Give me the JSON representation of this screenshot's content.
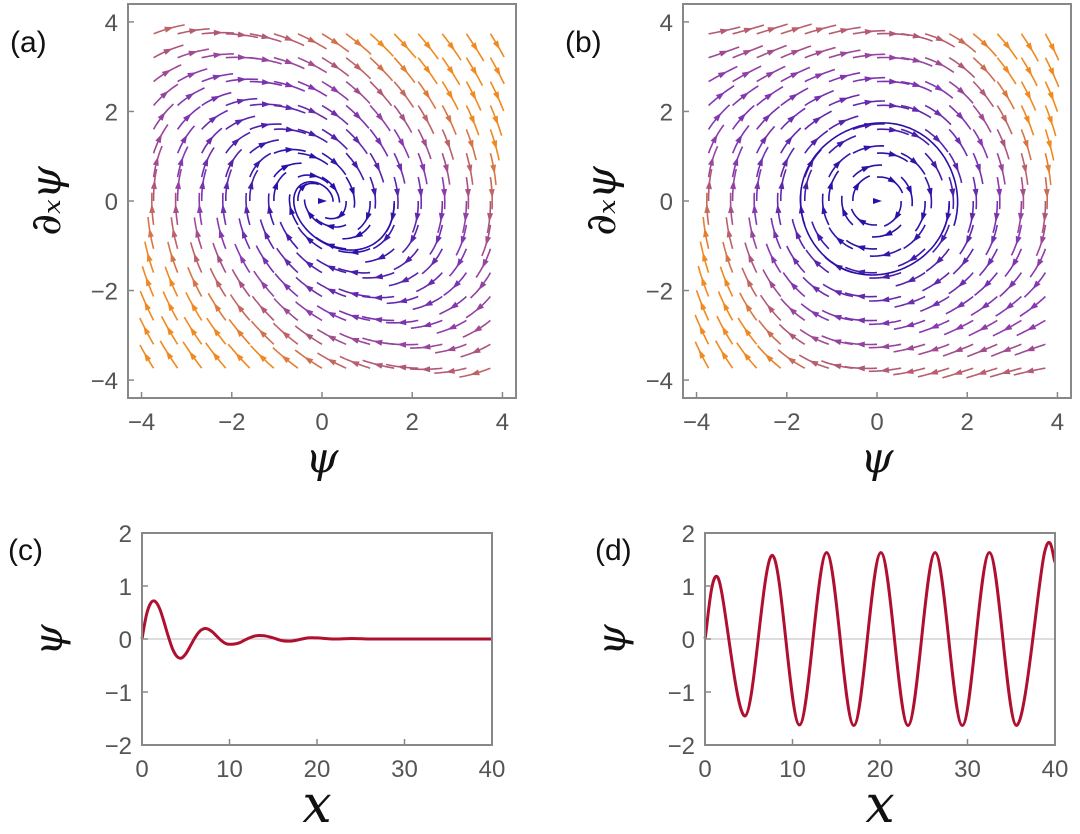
{
  "chart_data": [
    {
      "panel": "(a)",
      "type": "streamplot",
      "title": "",
      "xlabel": "ψ",
      "ylabel": "∂ₓψ",
      "xlim": [
        -4.3,
        4.3
      ],
      "ylim": [
        -4.4,
        4.4
      ],
      "xticks": [
        -4,
        -2,
        0,
        2,
        4
      ],
      "yticks": [
        -4,
        -2,
        0,
        2,
        4
      ],
      "xtick_labels": [
        "−4",
        "−2",
        "0",
        "2",
        "4"
      ],
      "ytick_labels": [
        "−4",
        "−2",
        "0",
        "2",
        "4"
      ],
      "field": "dψ/dx = ∂ₓψ ; d(∂ₓψ)/dx = −ψ − 0.6·∂ₓψ",
      "fixed_point": [
        0,
        0
      ],
      "fixed_point_kind": "stable spiral"
    },
    {
      "panel": "(b)",
      "type": "streamplot",
      "title": "",
      "xlabel": "ψ",
      "ylabel": "∂ₓψ",
      "xlim": [
        -4.3,
        4.3
      ],
      "ylim": [
        -4.4,
        4.4
      ],
      "xticks": [
        -4,
        -2,
        0,
        2,
        4
      ],
      "yticks": [
        -4,
        -2,
        0,
        2,
        4
      ],
      "xtick_labels": [
        "−4",
        "−2",
        "0",
        "2",
        "4"
      ],
      "ytick_labels": [
        "−4",
        "−2",
        "0",
        "2",
        "4"
      ],
      "field": "dψ/dx = ∂ₓψ ; d(∂ₓψ)/dx = −ψ − 0.2·∂ₓψ + 0.2·∂ₓψ·(1 − ψ²)",
      "fixed_point": [
        0,
        0
      ],
      "fixed_point_kind": "limit cycle"
    },
    {
      "panel": "(c)",
      "type": "line",
      "title": "",
      "xlabel": "x",
      "ylabel": "ψ",
      "xlim": [
        0,
        40
      ],
      "ylim": [
        -2,
        2
      ],
      "xticks": [
        0,
        10,
        20,
        30,
        40
      ],
      "yticks": [
        -2,
        -1,
        0,
        1,
        2
      ],
      "xtick_labels": [
        "0",
        "10",
        "20",
        "30",
        "40"
      ],
      "ytick_labels": [
        "−2",
        "−1",
        "0",
        "1",
        "2"
      ],
      "series": [
        {
          "name": "ψ(x)",
          "color": "#b01030",
          "x": [
            0,
            0.5,
            1,
            1.5,
            2,
            2.5,
            3,
            3.5,
            4,
            4.5,
            5,
            5.5,
            6,
            6.5,
            7,
            7.5,
            8,
            8.5,
            9,
            9.5,
            10,
            11,
            12,
            13,
            14,
            15,
            16,
            17,
            18,
            19,
            20,
            22,
            24,
            26,
            28,
            30,
            32,
            34,
            36,
            38,
            40
          ],
          "y": [
            0,
            0.45,
            0.68,
            0.71,
            0.58,
            0.33,
            0.05,
            -0.19,
            -0.33,
            -0.36,
            -0.28,
            -0.14,
            0.01,
            0.13,
            0.19,
            0.19,
            0.14,
            0.06,
            -0.02,
            -0.08,
            -0.1,
            -0.08,
            0.0,
            0.06,
            0.06,
            0.02,
            -0.03,
            -0.04,
            -0.01,
            0.02,
            0.02,
            0.0,
            0.01,
            0.0,
            0.0,
            0.0,
            0.0,
            0.0,
            0.0,
            0.0,
            0.0
          ]
        }
      ]
    },
    {
      "panel": "(d)",
      "type": "line",
      "title": "",
      "xlabel": "x",
      "ylabel": "ψ",
      "xlim": [
        0,
        40
      ],
      "ylim": [
        -2,
        2
      ],
      "xticks": [
        0,
        10,
        20,
        30,
        40
      ],
      "yticks": [
        -2,
        -1,
        0,
        1,
        2
      ],
      "xtick_labels": [
        "0",
        "10",
        "20",
        "30",
        "40"
      ],
      "ytick_labels": [
        "−2",
        "−1",
        "0",
        "1",
        "2"
      ],
      "series": [
        {
          "name": "ψ(x)",
          "color": "#b01030",
          "x": [
            0,
            1.5,
            4.6,
            7.7,
            10.8,
            13.9,
            17.0,
            20.1,
            23.2,
            26.3,
            29.4,
            32.5,
            35.6,
            38.8,
            40
          ],
          "y": [
            0,
            1.15,
            -1.45,
            1.58,
            -1.62,
            1.63,
            -1.63,
            1.63,
            -1.63,
            1.63,
            -1.63,
            1.63,
            -1.63,
            1.63,
            1.45
          ]
        }
      ]
    }
  ],
  "colors": {
    "stream_slow": "#2a10a8",
    "stream_mid": "#8a3ab0",
    "stream_fast": "#f08a20",
    "curve": "#b01030",
    "frame": "#888888",
    "zero_line": "#bbbbbb"
  }
}
